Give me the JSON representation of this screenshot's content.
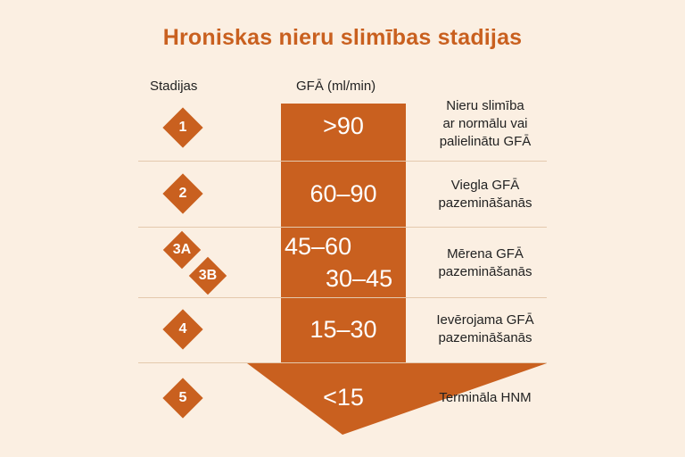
{
  "title": "Hroniskas nieru slimības stadijas",
  "headers": {
    "stages": "Stadijas",
    "gfr": "GFĀ (ml/min)"
  },
  "colors": {
    "accent": "#c9601f",
    "background": "#fbefe2",
    "divider": "#e4c9ad"
  },
  "stages": [
    {
      "label": "1",
      "gfr": ">90",
      "description": [
        "Nieru slimība",
        "ar normālu vai",
        "palielinātu GFĀ"
      ]
    },
    {
      "label": "2",
      "gfr": "60–90",
      "description": [
        "Viegla GFĀ",
        "pazemināšanās"
      ]
    },
    {
      "label_a": "3A",
      "label_b": "3B",
      "gfr_a": "45–60",
      "gfr_b": "30–45",
      "description": [
        "Mērena GFĀ",
        "pazemināšanās"
      ]
    },
    {
      "label": "4",
      "gfr": "15–30",
      "description": [
        "Ievērojama GFĀ",
        "pazemināšanās"
      ]
    },
    {
      "label": "5",
      "gfr": "<15",
      "description": [
        "Termināla HNM"
      ]
    }
  ]
}
